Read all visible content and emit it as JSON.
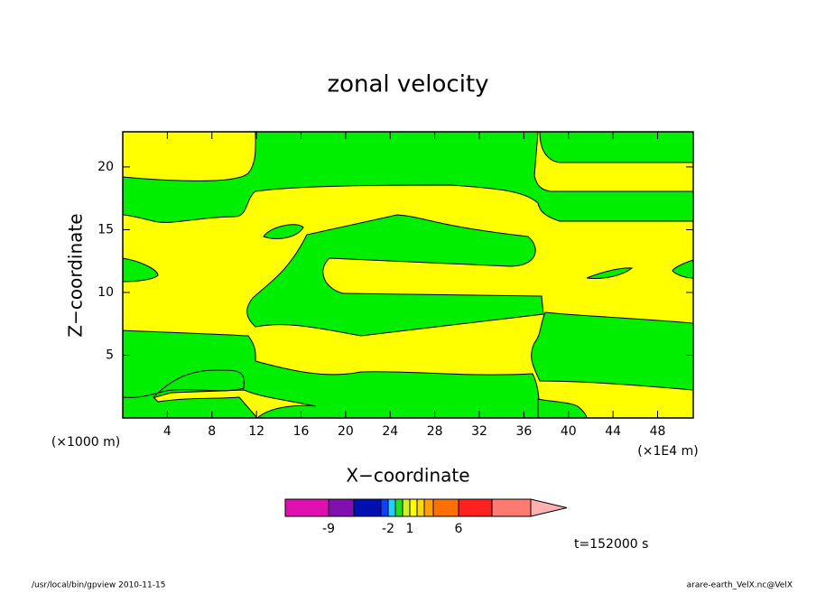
{
  "chart_data": {
    "type": "contour",
    "title": "zonal velocity",
    "x_label": "X−coordinate",
    "y_label": "Z−coordinate",
    "x_unit_label": "(×1E4 m)",
    "y_unit_label": "(×1000 m)",
    "xlim": [
      0,
      51.2
    ],
    "ylim": [
      0,
      22.8
    ],
    "xticks": [
      4,
      8,
      12,
      16,
      20,
      24,
      28,
      32,
      36,
      40,
      44,
      48
    ],
    "yticks": [
      5,
      10,
      15,
      20
    ],
    "colorbar_levels": [
      -9,
      -6,
      -3,
      -2,
      -1,
      0,
      1,
      2,
      3,
      4,
      6,
      9,
      12
    ],
    "colorbar_colors": [
      "#e010b0",
      "#8010b0",
      "#0010b0",
      "#1040ff",
      "#20d0ff",
      "#20e020",
      "#d0f020",
      "#ffff00",
      "#ffd800",
      "#ffa000",
      "#ff7000",
      "#ff2020",
      "#ff7a70",
      "#ffb0b0"
    ],
    "colorbar_labels": [
      -9,
      -2,
      1,
      6
    ],
    "annotation": "t=152000 s",
    "footer_left": "/usr/local/bin/gpview  2010-11-15",
    "footer_right": "arare-earth_VelX.nc@VelX"
  }
}
